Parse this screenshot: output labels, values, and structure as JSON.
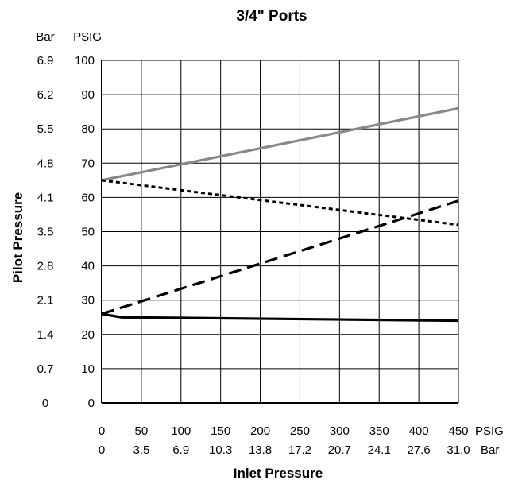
{
  "chart_data": {
    "type": "line",
    "title": "3/4\" Ports",
    "xlabel": "Inlet Pressure",
    "ylabel": "Pilot Pressure",
    "xlim": [
      0,
      450
    ],
    "ylim": [
      0,
      100
    ],
    "grid": true,
    "x_ticks_psig": [
      "0",
      "50",
      "100",
      "150",
      "200",
      "250",
      "300",
      "350",
      "400",
      "450"
    ],
    "x_ticks_bar": [
      "0",
      "3.5",
      "6.9",
      "10.3",
      "13.8",
      "17.2",
      "20.7",
      "24.1",
      "27.6",
      "31.0"
    ],
    "x_unit_psig": "PSIG",
    "x_unit_bar": "Bar",
    "y_ticks_psig": [
      "0",
      "10",
      "20",
      "30",
      "40",
      "50",
      "60",
      "70",
      "80",
      "90",
      "100"
    ],
    "y_ticks_bar": [
      "0",
      "0.7",
      "1.4",
      "2.1",
      "2.8",
      "3.5",
      "4.1",
      "4.8",
      "5.5",
      "6.2",
      "6.9"
    ],
    "y_unit_bar": "Bar",
    "y_unit_psig": "PSIG",
    "series": [
      {
        "style": "solid",
        "color": "#888888",
        "x": [
          0,
          450
        ],
        "y": [
          65,
          86
        ]
      },
      {
        "style": "dotted",
        "color": "#000000",
        "x": [
          0,
          450
        ],
        "y": [
          65,
          52
        ]
      },
      {
        "style": "dashed",
        "color": "#000000",
        "x": [
          0,
          450
        ],
        "y": [
          26,
          59
        ]
      },
      {
        "style": "solid",
        "color": "#000000",
        "x": [
          0,
          25,
          450
        ],
        "y": [
          26,
          25,
          24
        ]
      }
    ]
  }
}
